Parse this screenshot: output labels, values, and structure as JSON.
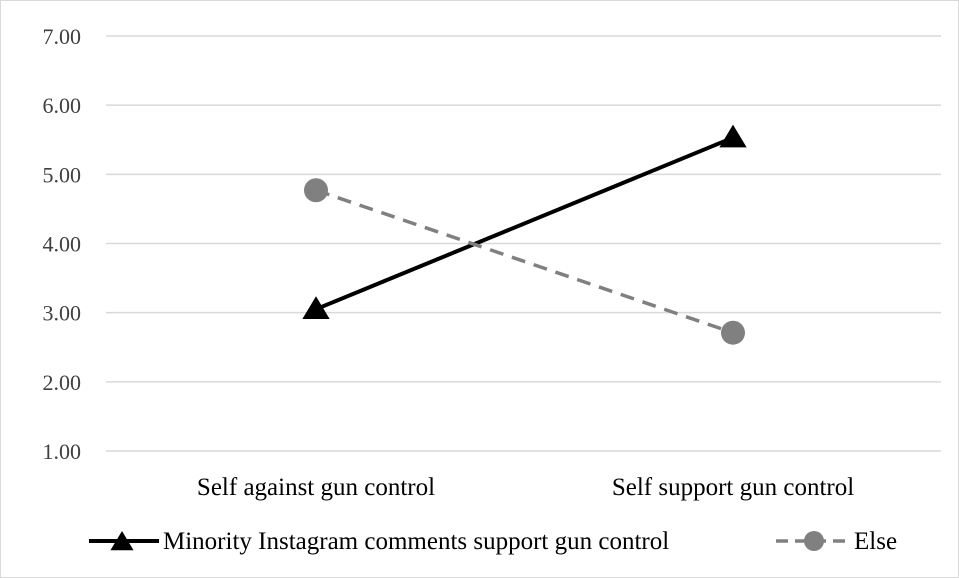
{
  "chart_data": {
    "type": "line",
    "title": "",
    "xlabel": "",
    "ylabel": "",
    "categories": [
      "Self against gun control",
      "Self support gun control"
    ],
    "ylim": [
      1.0,
      7.0
    ],
    "yticks": [
      "1.00",
      "2.00",
      "3.00",
      "4.00",
      "5.00",
      "6.00",
      "7.00"
    ],
    "grid": true,
    "legend_position": "bottom",
    "series": [
      {
        "name": "Minority Instagram comments support gun control",
        "values": [
          3.05,
          5.53
        ],
        "color": "#000000",
        "line_style": "solid",
        "marker": "triangle"
      },
      {
        "name": "Else",
        "values": [
          4.77,
          2.71
        ],
        "color": "#808080",
        "line_style": "dashed",
        "marker": "circle"
      }
    ]
  }
}
